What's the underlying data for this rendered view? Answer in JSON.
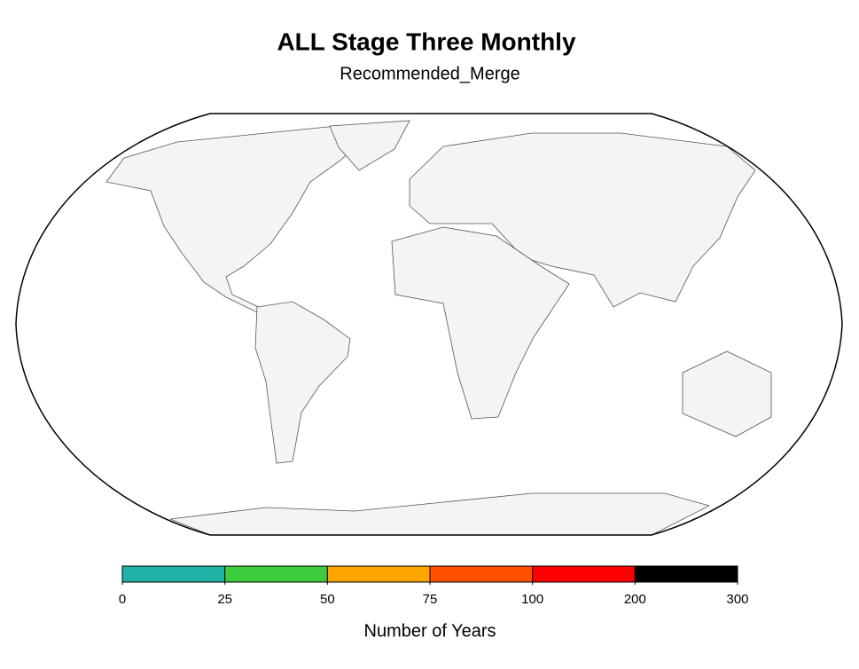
{
  "title": "ALL Stage Three Monthly",
  "subtitle": "Recommended_Merge",
  "legend": {
    "title": "Number of Years",
    "bins": [
      0,
      25,
      50,
      75,
      100,
      200,
      300
    ],
    "colors": [
      "#1fb3a8",
      "#3ccc3c",
      "#ffa500",
      "#ff5000",
      "#ff0000",
      "#000000"
    ]
  }
}
